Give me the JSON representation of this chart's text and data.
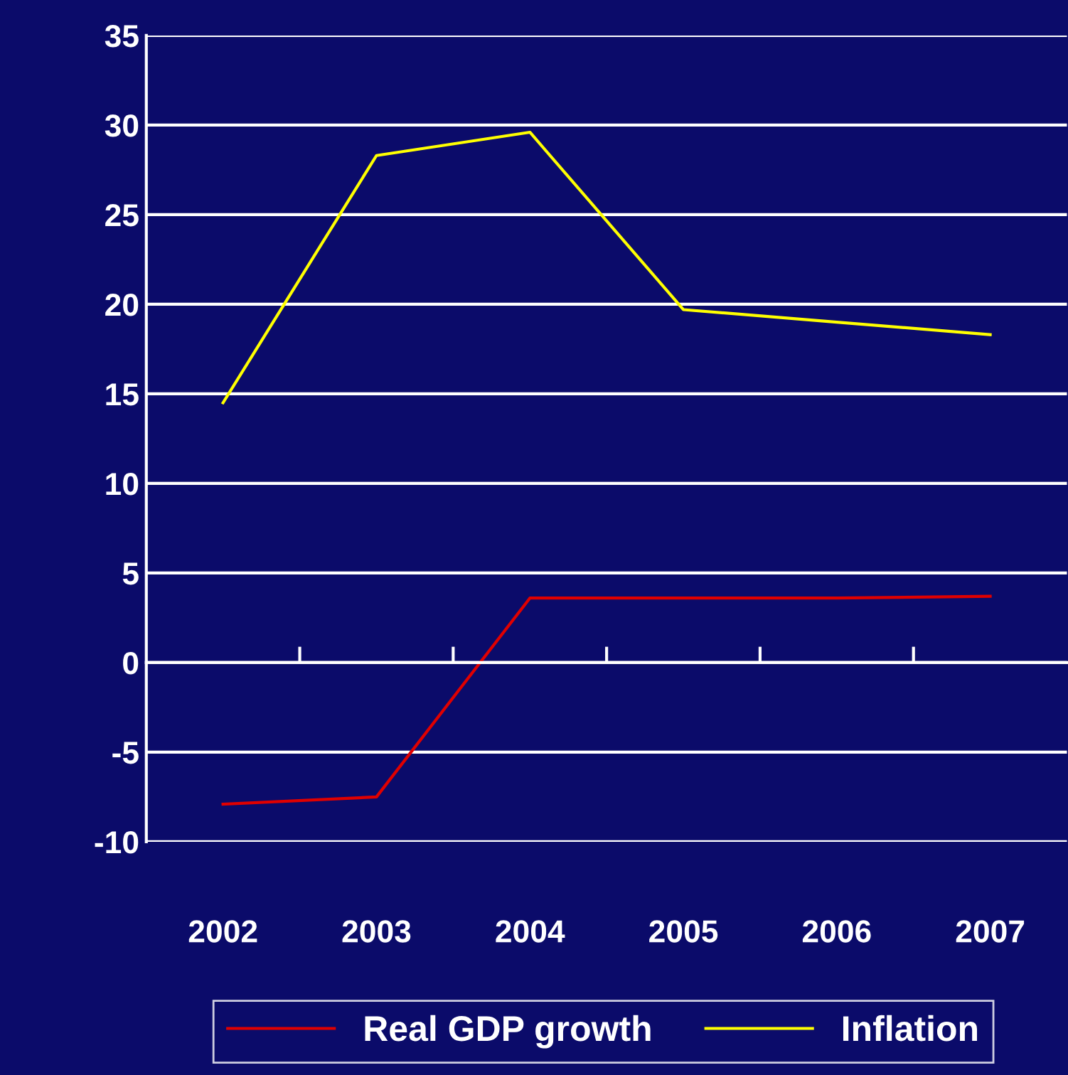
{
  "chart_data": {
    "type": "line",
    "categories": [
      "2002",
      "2003",
      "2004",
      "2005",
      "2006",
      "2007"
    ],
    "series": [
      {
        "name": "Real GDP growth",
        "color": "#e00000",
        "values": [
          -7.9,
          -7.5,
          3.6,
          3.6,
          3.6,
          3.7
        ]
      },
      {
        "name": "Inflation",
        "color": "#ffff00",
        "values": [
          14.5,
          28.3,
          29.6,
          19.7,
          19.0,
          18.3
        ]
      }
    ],
    "ylim": [
      -10,
      35
    ],
    "yticks": [
      -10,
      -5,
      0,
      5,
      10,
      15,
      20,
      25,
      30,
      35
    ],
    "grid": "y",
    "legend": "bottom",
    "marker": "none",
    "line_style": "solid"
  }
}
